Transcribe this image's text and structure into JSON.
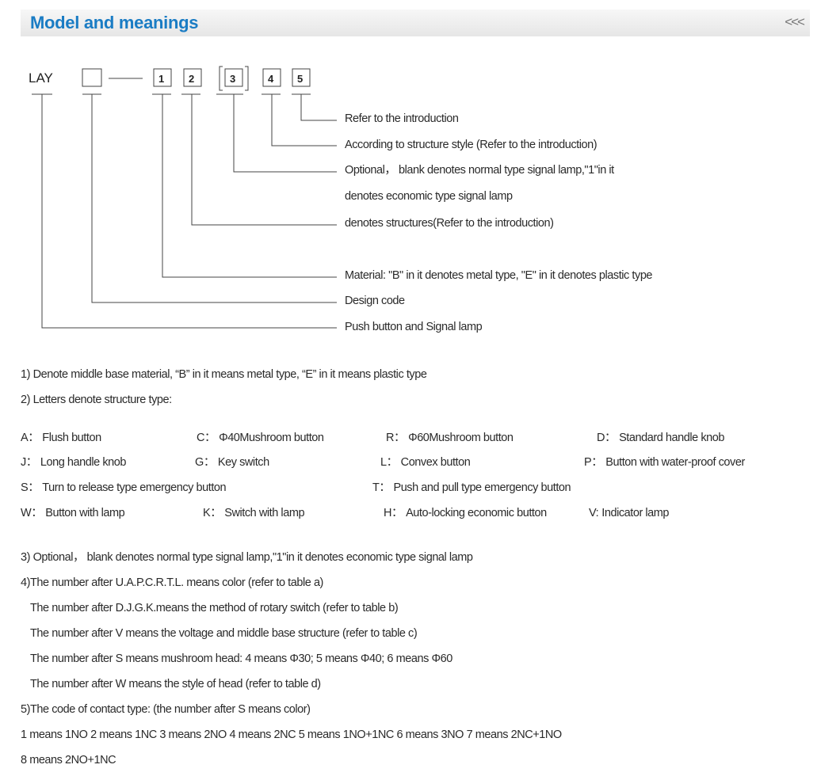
{
  "header": {
    "title": "Model and meanings",
    "collapse_icon": "triple-chevron-left-icon",
    "collapse_label": "<<<"
  },
  "diagram": {
    "prefix": "LAY",
    "boxes": [
      "1",
      "2",
      "3",
      "4",
      "5"
    ],
    "meanings": [
      "Refer to the introduction",
      "According to structure style (Refer to the introduction)",
      "Optional， blank denotes normal type signal lamp,\"1\"in it",
      "denotes economic type signal lamp",
      "denotes structures(Refer to the introduction)",
      "Material: \"B\" in it denotes metal type, \"E\" in it denotes plastic type",
      "Design code",
      "Push button and Signal lamp"
    ]
  },
  "notes_top": [
    "1) Denote middle base material, “B” in it means metal type, “E” in it means plastic type",
    "2) Letters denote structure type:"
  ],
  "structure_types": [
    {
      "code": "A：",
      "label": "Flush button"
    },
    {
      "code": "C：",
      "label": "Φ40Mushroom button"
    },
    {
      "code": "R：",
      "label": "Φ60Mushroom button"
    },
    {
      "code": "D：",
      "label": "Standard handle knob"
    },
    {
      "code": "J：",
      "label": "Long handle knob"
    },
    {
      "code": "G：",
      "label": "Key switch"
    },
    {
      "code": "L：",
      "label": "Convex button"
    },
    {
      "code": "P：",
      "label": "Button with water-proof cover"
    },
    {
      "code": "S：",
      "label": "Turn to release type emergency button"
    },
    {
      "code": "T：",
      "label": "Push and pull type emergency button"
    },
    {
      "code": "W：",
      "label": "Button with lamp"
    },
    {
      "code": "K：",
      "label": "Switch with lamp"
    },
    {
      "code": "H：",
      "label": "Auto-locking economic button"
    },
    {
      "code": "V:",
      "label": "Indicator lamp"
    }
  ],
  "notes_bottom": [
    "3) Optional， blank denotes normal type signal lamp,\"1\"in it  denotes economic type signal lamp",
    "4)The number after U.A.P.C.R.T.L. means color (refer to table a)",
    "The number after D.J.G.K.means the method of rotary switch (refer to table b)",
    "The number after V means the voltage and middle base structure (refer to table c)",
    "The number after S means  mushroom head: 4 means Φ30; 5 means Φ40; 6 means Φ60",
    "The number after W means the style of head (refer to table d)",
    "5)The code of contact type: (the number after S means color)",
    "1 means 1NO   2 means 1NC   3 means 2NO   4 means 2NC   5 means 1NO+1NC   6 means 3NO   7 means 2NC+1NO",
    "8 means 2NO+1NC"
  ]
}
